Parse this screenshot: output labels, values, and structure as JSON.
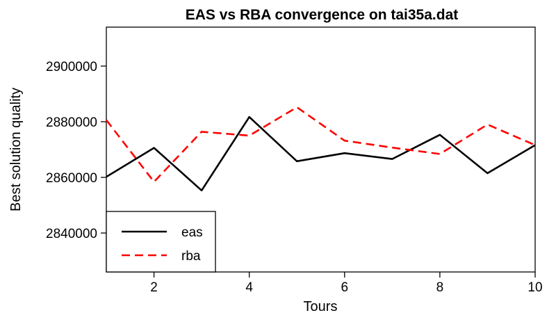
{
  "chart_data": {
    "type": "line",
    "title": "EAS vs RBA convergence on tai35a.dat",
    "xlabel": "Tours",
    "ylabel": "Best solution quality",
    "xlim": [
      1,
      10
    ],
    "ylim": [
      2826000,
      2914000
    ],
    "xticks": [
      2,
      4,
      6,
      8,
      10
    ],
    "yticks": [
      2840000,
      2860000,
      2880000,
      2900000
    ],
    "x": [
      1,
      2,
      3,
      4,
      5,
      6,
      7,
      8,
      9,
      10
    ],
    "series": [
      {
        "name": "eas",
        "color": "#000000",
        "dash": "solid",
        "values": [
          2860200,
          2870600,
          2855300,
          2881700,
          2865800,
          2868700,
          2866600,
          2875300,
          2861500,
          2871600
        ]
      },
      {
        "name": "rba",
        "color": "#ff0000",
        "dash": "dashed",
        "values": [
          2880600,
          2858400,
          2876400,
          2875000,
          2885200,
          2873200,
          2870700,
          2868400,
          2879000,
          2871600
        ]
      }
    ],
    "grid": false,
    "legend_position": "bottom-left"
  }
}
